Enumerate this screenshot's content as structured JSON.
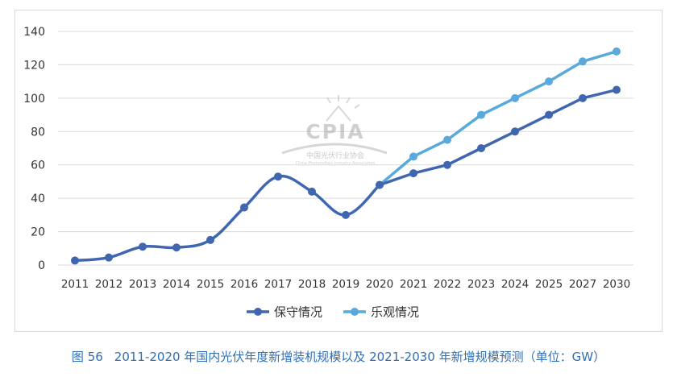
{
  "caption": {
    "figure_number": "图 56",
    "text": "2011-2020 年国内光伏年度新增装机规模以及 2021-2030 年新增规模预测（单位：GW）"
  },
  "watermark": {
    "logo_text": "CPIA",
    "cn_name": "中国光伏行业协会",
    "en_name": "China Photovoltaic Industry Association"
  },
  "colors": {
    "conservative": "#4066b0",
    "optimistic": "#5aa9dc",
    "grid": "#d9d9d9",
    "axis_text": "#333333",
    "caption": "#2f6fb5"
  },
  "chart_data": {
    "type": "line",
    "title": "",
    "xlabel": "",
    "ylabel": "",
    "categories": [
      "2011",
      "2012",
      "2013",
      "2014",
      "2015",
      "2016",
      "2017",
      "2018",
      "2019",
      "2020",
      "2021",
      "2022",
      "2023",
      "2024",
      "2025",
      "2027",
      "2030"
    ],
    "ylim": [
      0,
      140
    ],
    "yticks": [
      0,
      20,
      40,
      60,
      80,
      100,
      120,
      140
    ],
    "grid": true,
    "legend_position": "bottom-center",
    "series": [
      {
        "name": "保守情况",
        "color": "#4066b0",
        "smooth_until_index": 9,
        "values": [
          2.7,
          4.5,
          11,
          10.5,
          15,
          34.5,
          53,
          44,
          30,
          48,
          55,
          60,
          70,
          80,
          90,
          100,
          105
        ]
      },
      {
        "name": "乐观情况",
        "color": "#5aa9dc",
        "start_index": 9,
        "values": [
          null,
          null,
          null,
          null,
          null,
          null,
          null,
          null,
          null,
          48,
          65,
          75,
          90,
          100,
          110,
          122,
          128
        ]
      }
    ]
  }
}
